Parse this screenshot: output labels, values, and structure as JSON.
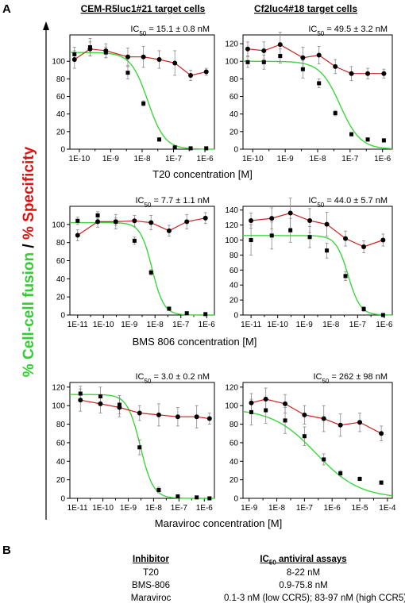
{
  "panel_labels": {
    "a": "A",
    "b": "B"
  },
  "column_titles": [
    "CEM-R5luc1#21 target cells",
    "Cf2luc4#18 target cells"
  ],
  "y_axis_label": {
    "part1": "% Cell-cell fusion",
    "separator": " / ",
    "part2": "% Specificity"
  },
  "colors": {
    "fit": "#3cd63c",
    "specificity": "#cc2222",
    "fusion_text": "#33cc33",
    "specificity_text": "#dd1111"
  },
  "chart_data": [
    {
      "type": "scatter",
      "row": 0,
      "col": 0,
      "x_scale": "log",
      "ic50_label": "IC",
      "ic50_sub": "50",
      "ic50_value": " = 15.1 ± 0.8 nM",
      "xlabel": "T20 concentration [M]",
      "ylim": [
        0,
        130
      ],
      "yticks": [
        0,
        20,
        40,
        60,
        80,
        100
      ],
      "xlim": [
        5e-11,
        2e-06
      ],
      "xticks": [
        {
          "v": 1e-10,
          "label": "1E-10"
        },
        {
          "v": 1e-09,
          "label": "1E-9"
        },
        {
          "v": 1e-08,
          "label": "1E-8"
        },
        {
          "v": 1e-07,
          "label": "1E-7"
        },
        {
          "v": 1e-06,
          "label": "1E-6"
        }
      ],
      "fusion": {
        "x": [
          7e-11,
          2.2e-10,
          7e-10,
          3.5e-09,
          1.1e-08,
          3.5e-08,
          1.1e-07,
          3.5e-07,
          1.1e-06
        ],
        "y": [
          108,
          116,
          110,
          87,
          52,
          11,
          2,
          1,
          1
        ],
        "err": [
          8,
          10,
          6,
          7,
          3,
          2,
          1,
          1,
          1
        ]
      },
      "specificity": {
        "x": [
          7e-11,
          2.2e-10,
          7e-10,
          3.5e-09,
          1.1e-08,
          3.5e-08,
          1.1e-07,
          3.5e-07,
          1.1e-06
        ],
        "y": [
          102,
          114,
          112,
          105,
          105,
          102,
          98,
          84,
          88
        ],
        "err": [
          10,
          8,
          8,
          10,
          12,
          10,
          14,
          6,
          4
        ]
      },
      "fit": {
        "top": 110,
        "bottom": 0,
        "ic50": 1.51e-08,
        "hill": 1.6
      }
    },
    {
      "type": "scatter",
      "row": 0,
      "col": 1,
      "x_scale": "log",
      "ic50_label": "IC",
      "ic50_sub": "50",
      "ic50_value": " = 49.5 ± 3.2 nM",
      "xlabel": "T20 concentration [M]",
      "ylim": [
        0,
        130
      ],
      "yticks": [
        0,
        20,
        40,
        60,
        80,
        100,
        120
      ],
      "xlim": [
        5e-11,
        2e-06
      ],
      "xticks": [
        {
          "v": 1e-10,
          "label": "1E-10"
        },
        {
          "v": 1e-09,
          "label": "1E-9"
        },
        {
          "v": 1e-08,
          "label": "1E-8"
        },
        {
          "v": 1e-07,
          "label": "1E-7"
        },
        {
          "v": 1e-06,
          "label": "1E-6"
        }
      ],
      "fusion": {
        "x": [
          7e-11,
          2.2e-10,
          7e-10,
          3.5e-09,
          1.1e-08,
          3.5e-08,
          1.1e-07,
          3.5e-07,
          1.1e-06
        ],
        "y": [
          99,
          99,
          106,
          91,
          75,
          41,
          17,
          11,
          10
        ],
        "err": [
          6,
          8,
          8,
          10,
          5,
          3,
          2,
          2,
          2
        ]
      },
      "specificity": {
        "x": [
          7e-11,
          2.2e-10,
          7e-10,
          3.5e-09,
          1.1e-08,
          3.5e-08,
          1.1e-07,
          3.5e-07,
          1.1e-06
        ],
        "y": [
          114,
          112,
          119,
          104,
          107,
          94,
          86,
          86,
          86
        ],
        "err": [
          8,
          10,
          14,
          12,
          10,
          8,
          8,
          6,
          5
        ]
      },
      "fit": {
        "top": 100,
        "bottom": 0,
        "ic50": 4.95e-08,
        "hill": 1.4
      }
    },
    {
      "type": "scatter",
      "row": 1,
      "col": 0,
      "x_scale": "log",
      "ic50_label": "IC",
      "ic50_sub": "50",
      "ic50_value": " = 7.7 ± 1.1 nM",
      "xlabel": "BMS 806 concentration [M]",
      "ylim": [
        0,
        120
      ],
      "yticks": [
        0,
        20,
        40,
        60,
        80,
        100
      ],
      "xlim": [
        5e-12,
        2e-06
      ],
      "xticks": [
        {
          "v": 1e-11,
          "label": "1E-11"
        },
        {
          "v": 1e-10,
          "label": "1E-10"
        },
        {
          "v": 1e-09,
          "label": "1E-9"
        },
        {
          "v": 1e-08,
          "label": "1E-8"
        },
        {
          "v": 1e-07,
          "label": "1E-7"
        },
        {
          "v": 1e-06,
          "label": "1E-6"
        }
      ],
      "fusion": {
        "x": [
          1e-11,
          6e-11,
          3e-10,
          1.6e-09,
          7e-09,
          3.5e-08,
          1.7e-07,
          9e-07
        ],
        "y": [
          104,
          110,
          103,
          82,
          47,
          7,
          2,
          1
        ],
        "err": [
          4,
          4,
          4,
          4,
          3,
          2,
          1,
          1
        ]
      },
      "specificity": {
        "x": [
          1e-11,
          6e-11,
          3e-10,
          1.6e-09,
          7e-09,
          3.5e-08,
          1.7e-07,
          9e-07
        ],
        "y": [
          88,
          103,
          103,
          104,
          102,
          93,
          103,
          107
        ],
        "err": [
          6,
          6,
          8,
          6,
          8,
          6,
          8,
          6
        ]
      },
      "fit": {
        "top": 102,
        "bottom": 0,
        "ic50": 7.7e-09,
        "hill": 1.9
      }
    },
    {
      "type": "scatter",
      "row": 1,
      "col": 1,
      "x_scale": "log",
      "ic50_label": "IC",
      "ic50_sub": "50",
      "ic50_value": " = 44.0 ± 5.7 nM",
      "xlabel": "BMS 806 concentration [M]",
      "ylim": [
        0,
        145
      ],
      "yticks": [
        0,
        20,
        40,
        60,
        80,
        100,
        120,
        140
      ],
      "xlim": [
        5e-12,
        2e-06
      ],
      "xticks": [
        {
          "v": 1e-11,
          "label": "1E-11"
        },
        {
          "v": 1e-10,
          "label": "1E-10"
        },
        {
          "v": 1e-09,
          "label": "1E-9"
        },
        {
          "v": 1e-08,
          "label": "1E-8"
        },
        {
          "v": 1e-07,
          "label": "1E-7"
        },
        {
          "v": 1e-06,
          "label": "1E-6"
        }
      ],
      "fusion": {
        "x": [
          1e-11,
          6e-11,
          3e-10,
          1.6e-09,
          7e-09,
          3.5e-08,
          1.7e-07,
          9e-07
        ],
        "y": [
          100,
          106,
          113,
          104,
          86,
          52,
          8,
          0
        ],
        "err": [
          20,
          18,
          16,
          14,
          10,
          6,
          3,
          2
        ]
      },
      "specificity": {
        "x": [
          1e-11,
          6e-11,
          3e-10,
          1.6e-09,
          7e-09,
          3.5e-08,
          1.7e-07,
          9e-07
        ],
        "y": [
          126,
          129,
          136,
          126,
          121,
          102,
          91,
          100
        ],
        "err": [
          10,
          14,
          20,
          16,
          16,
          10,
          8,
          8
        ]
      },
      "fit": {
        "top": 106,
        "bottom": 0,
        "ic50": 4.4e-08,
        "hill": 1.9
      }
    },
    {
      "type": "scatter",
      "row": 2,
      "col": 0,
      "x_scale": "log",
      "ic50_label": "IC",
      "ic50_sub": "50",
      "ic50_value": " = 3.0 ± 0.2 nM",
      "xlabel": "Maraviroc concentration [M]",
      "ylim": [
        0,
        125
      ],
      "yticks": [
        0,
        20,
        40,
        60,
        80,
        100,
        120
      ],
      "xlim": [
        5e-12,
        2.5e-06
      ],
      "xticks": [
        {
          "v": 1e-11,
          "label": "1E-11"
        },
        {
          "v": 1e-10,
          "label": "1E-10"
        },
        {
          "v": 1e-09,
          "label": "1E-9"
        },
        {
          "v": 1e-08,
          "label": "1E-8"
        },
        {
          "v": 1e-07,
          "label": "1E-7"
        },
        {
          "v": 1e-06,
          "label": "1E-6"
        }
      ],
      "fusion": {
        "x": [
          1.3e-11,
          8e-11,
          4.5e-10,
          2.8e-09,
          1.6e-08,
          9e-08,
          5e-07,
          1.6e-06
        ],
        "y": [
          113,
          110,
          101,
          55,
          9,
          2,
          1,
          0
        ],
        "err": [
          8,
          10,
          10,
          8,
          3,
          2,
          1,
          1
        ]
      },
      "specificity": {
        "x": [
          1.3e-11,
          8e-11,
          4.5e-10,
          2.8e-09,
          1.6e-08,
          9e-08,
          5e-07,
          1.6e-06
        ],
        "y": [
          106,
          102,
          98,
          92,
          90,
          88,
          88,
          86
        ],
        "err": [
          12,
          10,
          10,
          8,
          12,
          10,
          12,
          6
        ]
      },
      "fit": {
        "top": 112,
        "bottom": 0,
        "ic50": 3e-09,
        "hill": 1.7
      }
    },
    {
      "type": "scatter",
      "row": 2,
      "col": 1,
      "x_scale": "log",
      "ic50_label": "IC",
      "ic50_sub": "50",
      "ic50_value": " = 262 ± 98 nM",
      "xlabel": "Maraviroc concentration [M]",
      "ylim": [
        0,
        125
      ],
      "yticks": [
        0,
        20,
        40,
        60,
        80,
        100,
        120
      ],
      "xlim": [
        6e-10,
        0.00015
      ],
      "xticks": [
        {
          "v": 1e-09,
          "label": "1E-9"
        },
        {
          "v": 1e-08,
          "label": "1E-8"
        },
        {
          "v": 1e-07,
          "label": "1E-7"
        },
        {
          "v": 1e-06,
          "label": "1E-6"
        },
        {
          "v": 1e-05,
          "label": "1E-5"
        },
        {
          "v": 0.0001,
          "label": "1E-4"
        }
      ],
      "fusion": {
        "x": [
          1.2e-09,
          4e-09,
          2e-08,
          1e-07,
          5e-07,
          2e-06,
          1e-05,
          6e-05
        ],
        "y": [
          93,
          95,
          84,
          67,
          42,
          27,
          21,
          17
        ],
        "err": [
          14,
          14,
          14,
          10,
          6,
          3,
          2,
          2
        ]
      },
      "specificity": {
        "x": [
          1.2e-09,
          4e-09,
          2e-08,
          1e-07,
          5e-07,
          2e-06,
          1e-05,
          6e-05
        ],
        "y": [
          103,
          107,
          102,
          90,
          86,
          79,
          82,
          70
        ],
        "err": [
          10,
          12,
          10,
          10,
          14,
          12,
          10,
          8
        ]
      },
      "fit": {
        "top": 97,
        "bottom": 0,
        "ic50": 2.62e-07,
        "hill": 0.55
      }
    }
  ],
  "table": {
    "headers": {
      "inhibitor": "Inhibitor",
      "ic50_main": "IC",
      "ic50_sub": "50",
      "ic50_rest": " antiviral assays"
    },
    "rows": [
      {
        "inhibitor": "T20",
        "value": "8-22 nM"
      },
      {
        "inhibitor": "BMS-806",
        "value": "0.9-75.8 nM"
      },
      {
        "inhibitor": "Maraviroc",
        "value": "0.1-3 nM (low CCR5); 83-97 nM (high CCR5)"
      }
    ]
  }
}
